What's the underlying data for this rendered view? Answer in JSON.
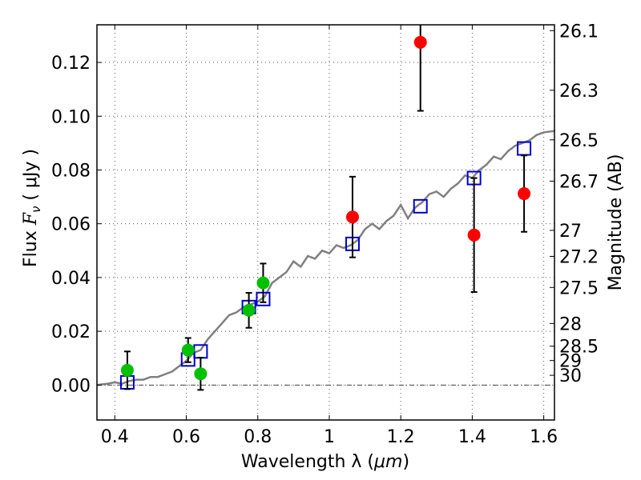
{
  "chart_data": {
    "type": "scatter",
    "xlabel_prefix": "Wavelength  λ (",
    "xlabel_unit": "μm",
    "xlabel_suffix": ")",
    "ylabel_prefix": "Flux  ",
    "ylabel_symbol": "F",
    "ylabel_subscript": "ν",
    "ylabel_suffix": "  ( μJy )",
    "y2label": "Magnitude (AB)",
    "xlim": [
      0.35,
      1.63
    ],
    "ylim": [
      -0.013,
      0.134
    ],
    "x_ticks": [
      0.4,
      0.6,
      0.8,
      1.0,
      1.2,
      1.4,
      1.6
    ],
    "x_tick_labels": [
      "0.4",
      "0.6",
      "0.8",
      "1",
      "1.2",
      "1.4",
      "1.6"
    ],
    "y_ticks": [
      0.0,
      0.02,
      0.04,
      0.06,
      0.08,
      0.1,
      0.12
    ],
    "y_tick_labels": [
      "0.00",
      "0.02",
      "0.04",
      "0.06",
      "0.08",
      "0.10",
      "0.12"
    ],
    "mag_ticks": [
      {
        "label": "26.1",
        "mag": 26.1
      },
      {
        "label": "26.3",
        "mag": 26.3
      },
      {
        "label": "26.5",
        "mag": 26.5
      },
      {
        "label": "26.7",
        "mag": 26.7
      },
      {
        "label": "27",
        "mag": 27.0
      },
      {
        "label": "27.2",
        "mag": 27.2
      },
      {
        "label": "27.5",
        "mag": 27.5
      },
      {
        "label": "28",
        "mag": 28.0
      },
      {
        "label": "28.5",
        "mag": 28.5
      },
      {
        "label": "29",
        "mag": 29.0
      },
      {
        "label": "30",
        "mag": 30.0
      }
    ],
    "grid": true,
    "zero_line": true,
    "colors": {
      "model_line": "#808080",
      "model_points": "#0000cc",
      "green_points": "#00c000",
      "red_points": "#ff0000",
      "error_bars": "#000000"
    },
    "series": [
      {
        "type": "line",
        "color": "#808080",
        "x": [
          0.35,
          0.38,
          0.4,
          0.42,
          0.44,
          0.46,
          0.48,
          0.5,
          0.52,
          0.54,
          0.56,
          0.58,
          0.6,
          0.62,
          0.64,
          0.66,
          0.68,
          0.7,
          0.72,
          0.74,
          0.76,
          0.78,
          0.8,
          0.82,
          0.84,
          0.86,
          0.88,
          0.9,
          0.92,
          0.94,
          0.96,
          0.98,
          1.0,
          1.02,
          1.04,
          1.06,
          1.08,
          1.1,
          1.12,
          1.14,
          1.16,
          1.18,
          1.2,
          1.22,
          1.24,
          1.26,
          1.28,
          1.3,
          1.32,
          1.34,
          1.36,
          1.38,
          1.4,
          1.42,
          1.44,
          1.46,
          1.48,
          1.5,
          1.52,
          1.54,
          1.56,
          1.58,
          1.6,
          1.63
        ],
        "y": [
          0.0,
          0.0005,
          0.001,
          0.0005,
          0.0015,
          0.002,
          0.002,
          0.003,
          0.003,
          0.004,
          0.005,
          0.007,
          0.009,
          0.012,
          0.013,
          0.017,
          0.02,
          0.023,
          0.026,
          0.027,
          0.029,
          0.03,
          0.031,
          0.033,
          0.038,
          0.04,
          0.042,
          0.046,
          0.044,
          0.048,
          0.047,
          0.05,
          0.049,
          0.052,
          0.051,
          0.052,
          0.054,
          0.058,
          0.06,
          0.058,
          0.061,
          0.063,
          0.067,
          0.062,
          0.066,
          0.068,
          0.071,
          0.072,
          0.07,
          0.073,
          0.075,
          0.078,
          0.077,
          0.08,
          0.082,
          0.085,
          0.084,
          0.087,
          0.089,
          0.09,
          0.091,
          0.093,
          0.094,
          0.0945
        ]
      },
      {
        "type": "model_points",
        "marker": "square",
        "color": "#0000cc",
        "x": [
          0.435,
          0.605,
          0.64,
          0.775,
          0.815,
          1.065,
          1.255,
          1.405,
          1.545
        ],
        "y": [
          0.001,
          0.0095,
          0.0125,
          0.029,
          0.032,
          0.0525,
          0.0665,
          0.077,
          0.088
        ]
      },
      {
        "type": "observed",
        "marker": "circle",
        "color": "#00c000",
        "x": [
          0.435,
          0.605,
          0.64,
          0.775,
          0.815
        ],
        "y": [
          0.0055,
          0.013,
          0.0042,
          0.0278,
          0.038
        ],
        "yerr": [
          0.007,
          0.0045,
          0.006,
          0.0065,
          0.0072
        ]
      },
      {
        "type": "observed",
        "marker": "circle",
        "color": "#ff0000",
        "x": [
          1.065,
          1.255,
          1.405,
          1.545
        ],
        "y": [
          0.0625,
          0.1275,
          0.0558,
          0.0712
        ],
        "yerr": [
          0.015,
          0.0255,
          0.0212,
          0.0142
        ]
      }
    ]
  }
}
